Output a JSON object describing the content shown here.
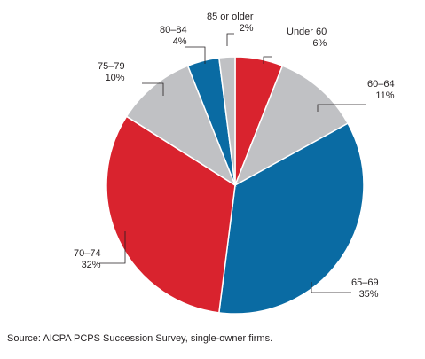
{
  "chart_data": {
    "type": "pie",
    "start_angle_deg": 0,
    "direction": "clockwise",
    "slices": [
      {
        "label": "Under 60",
        "value": 6,
        "value_label": "6%",
        "color": "#d9232e"
      },
      {
        "label": "60–64",
        "value": 11,
        "value_label": "11%",
        "color": "#c0c1c4"
      },
      {
        "label": "65–69",
        "value": 35,
        "value_label": "35%",
        "color": "#0a6ba3"
      },
      {
        "label": "70–74",
        "value": 32,
        "value_label": "32%",
        "color": "#d9232e"
      },
      {
        "label": "75–79",
        "value": 10,
        "value_label": "10%",
        "color": "#c0c1c4"
      },
      {
        "label": "80–84",
        "value": 4,
        "value_label": "4%",
        "color": "#0a6ba3"
      },
      {
        "label": "85 or older",
        "value": 2,
        "value_label": "2%",
        "color": "#c0c1c4"
      }
    ],
    "slice_border_color": "#ffffff"
  },
  "source": "Source: AICPA PCPS Succession Survey, single-owner firms."
}
